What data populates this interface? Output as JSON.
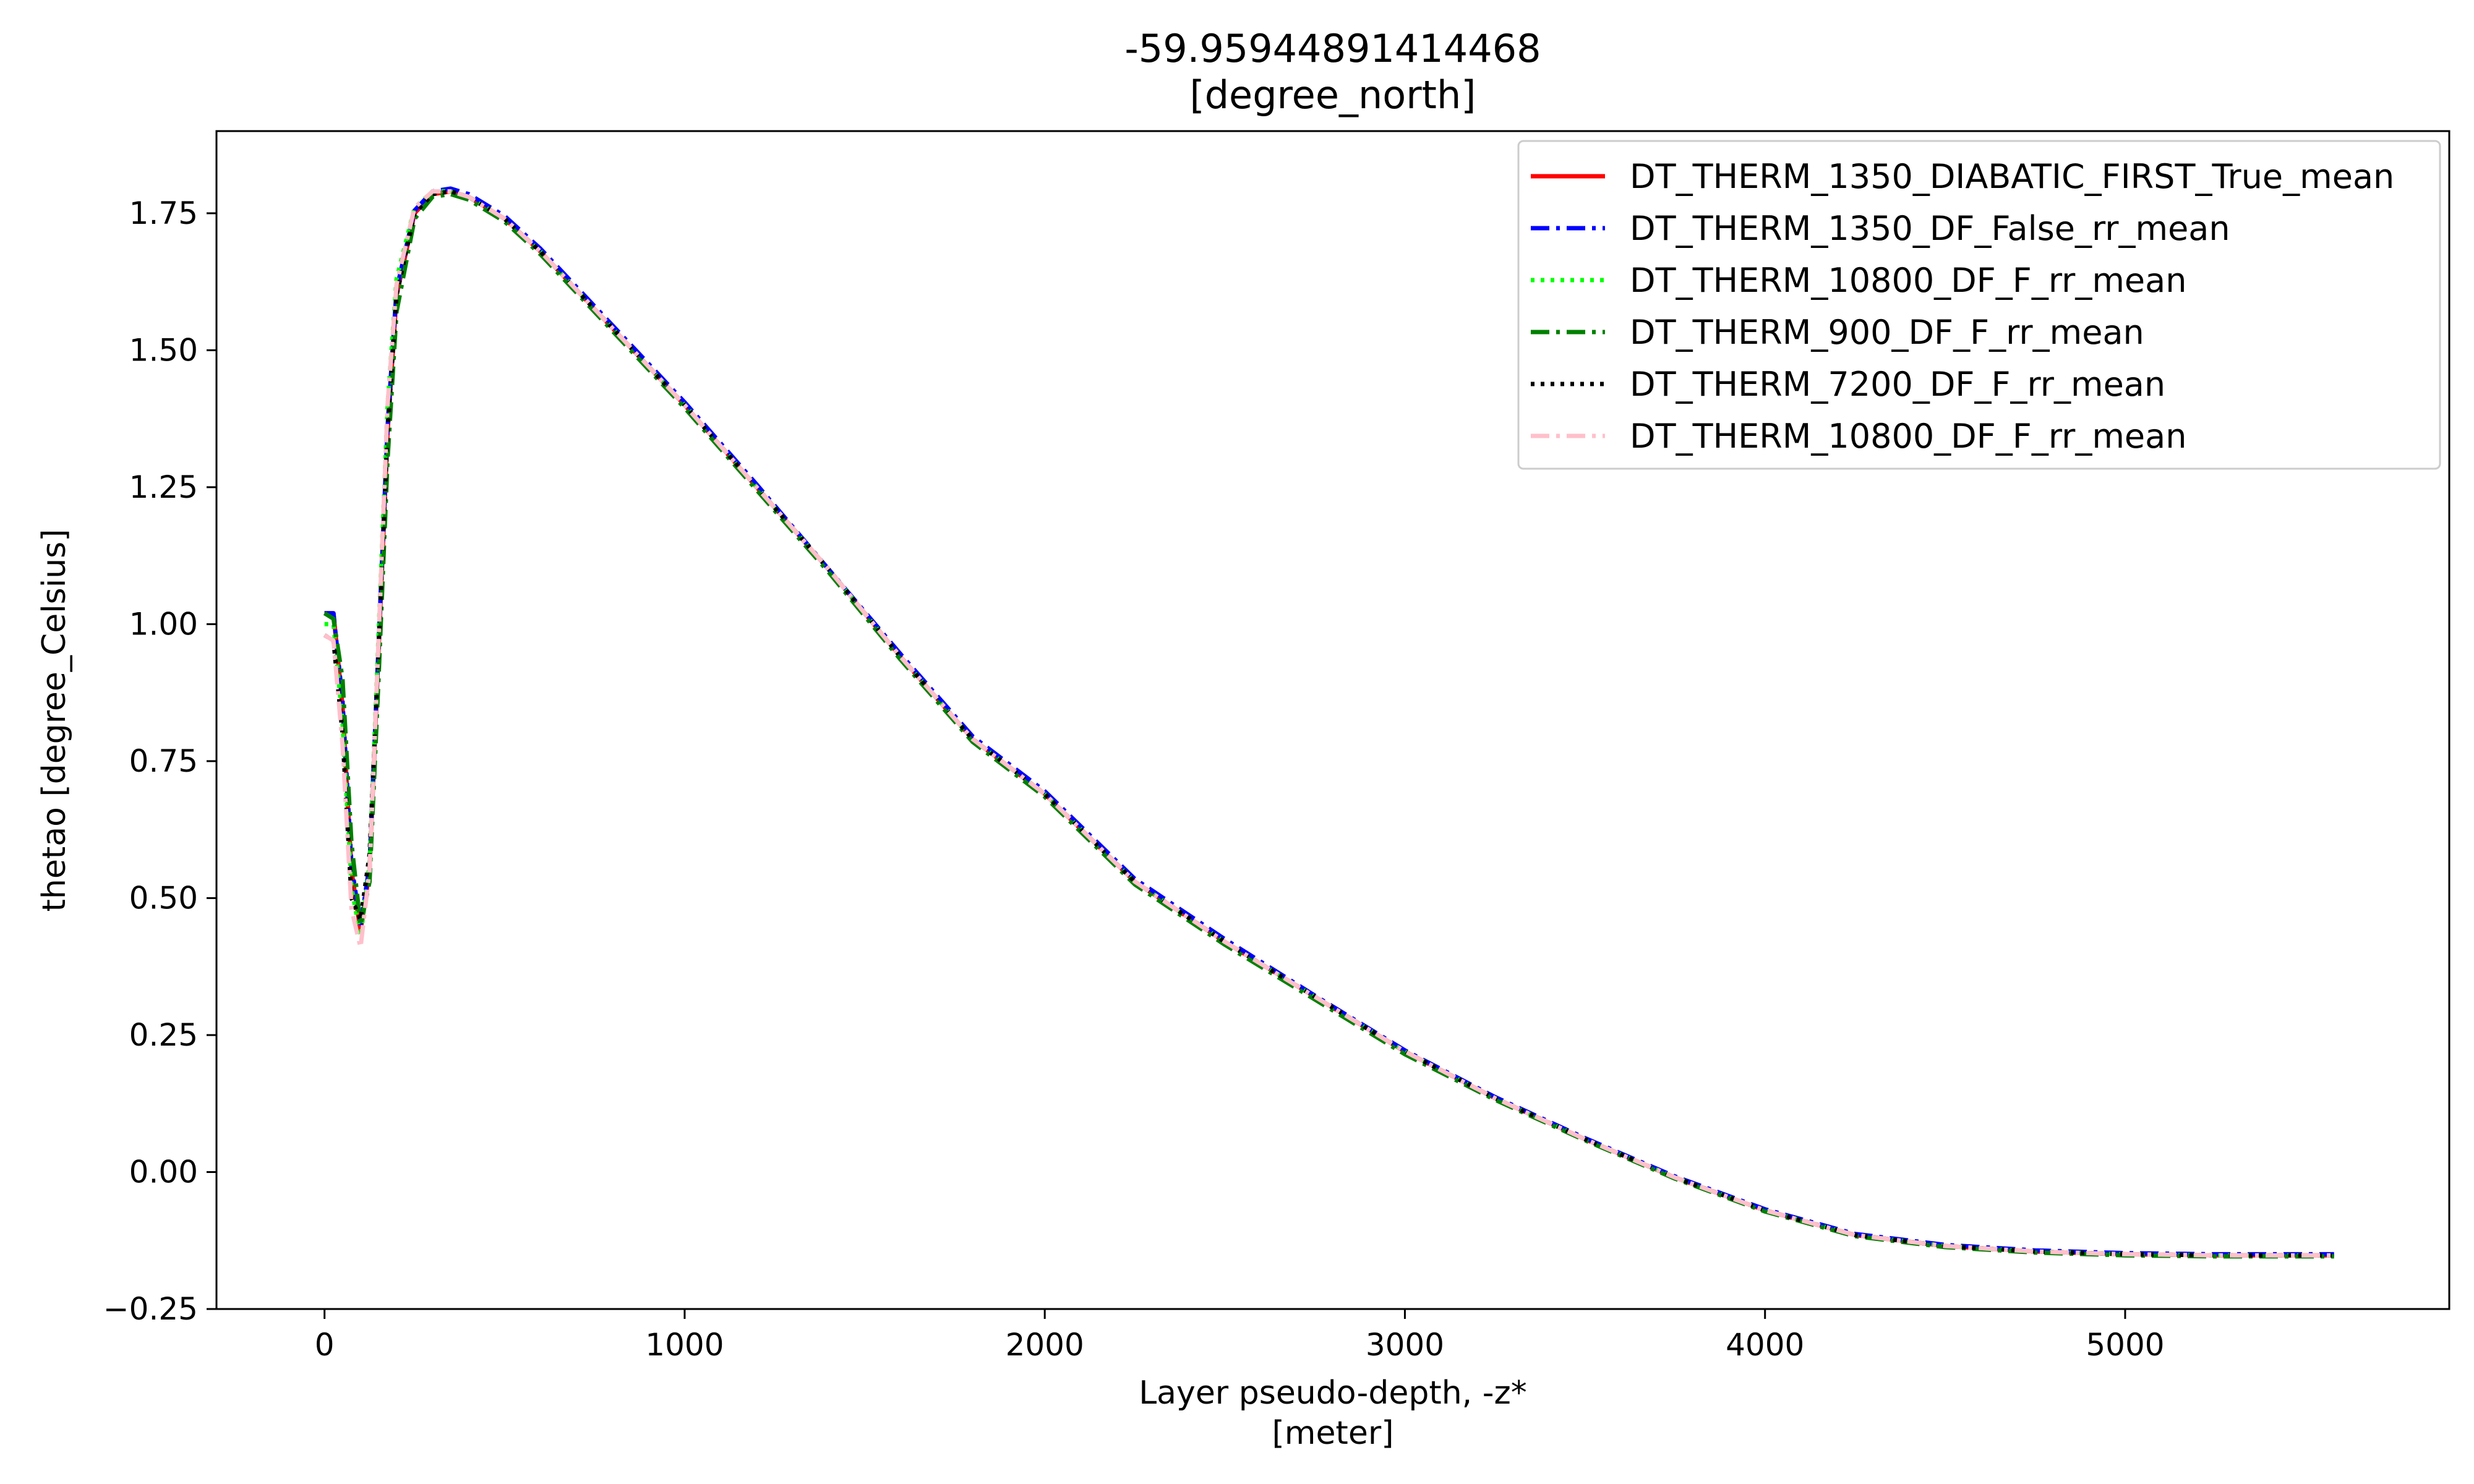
{
  "chart_data": {
    "type": "line",
    "title": "-59.95944891414468",
    "subtitle": "[degree_north]",
    "xlabel": "Layer pseudo-depth, -z*",
    "xlabel_units": "[meter]",
    "ylabel": "thetao [degree_Celsius]",
    "xlim": [
      -300,
      5900
    ],
    "ylim": [
      -0.25,
      1.9
    ],
    "xticks": [
      0,
      1000,
      2000,
      3000,
      4000,
      5000
    ],
    "xtick_labels": [
      "0",
      "1000",
      "2000",
      "3000",
      "4000",
      "5000"
    ],
    "yticks": [
      -0.25,
      0.0,
      0.25,
      0.5,
      0.75,
      1.0,
      1.25,
      1.5,
      1.75
    ],
    "ytick_labels": [
      "−0.25",
      "0.00",
      "0.25",
      "0.50",
      "0.75",
      "1.00",
      "1.25",
      "1.50",
      "1.75"
    ],
    "grid": false,
    "legend_position": "top-right",
    "x": [
      0,
      25,
      50,
      75,
      100,
      125,
      150,
      175,
      200,
      250,
      300,
      350,
      400,
      500,
      600,
      700,
      800,
      1000,
      1200,
      1400,
      1600,
      1800,
      2000,
      2250,
      2500,
      2750,
      3000,
      3250,
      3500,
      3750,
      4000,
      4250,
      4500,
      4750,
      5000,
      5250,
      5580
    ],
    "series": [
      {
        "name": "DT_THERM_1350_DIABATIC_FIRST_True_mean",
        "color": "#ff0000",
        "dash": "solid",
        "values": [
          1.02,
          1.02,
          0.85,
          0.55,
          0.44,
          0.55,
          0.95,
          1.35,
          1.6,
          1.75,
          1.785,
          1.79,
          1.78,
          1.74,
          1.68,
          1.61,
          1.54,
          1.4,
          1.25,
          1.1,
          0.94,
          0.79,
          0.69,
          0.53,
          0.42,
          0.32,
          0.22,
          0.135,
          0.06,
          -0.01,
          -0.07,
          -0.115,
          -0.135,
          -0.145,
          -0.15,
          -0.152,
          -0.152
        ]
      },
      {
        "name": "DT_THERM_1350_DF_False_rr_mean",
        "color": "#0000ff",
        "dash": "dashdot",
        "values": [
          1.02,
          1.02,
          0.86,
          0.56,
          0.45,
          0.56,
          0.96,
          1.36,
          1.61,
          1.755,
          1.79,
          1.795,
          1.785,
          1.745,
          1.685,
          1.615,
          1.545,
          1.405,
          1.255,
          1.1,
          0.945,
          0.795,
          0.695,
          0.535,
          0.425,
          0.322,
          0.222,
          0.137,
          0.062,
          -0.008,
          -0.068,
          -0.113,
          -0.133,
          -0.143,
          -0.148,
          -0.15,
          -0.15
        ]
      },
      {
        "name": "DT_THERM_10800_DF_F_rr_mean",
        "color": "#00ff00",
        "dash": "dotted",
        "values": [
          1.0,
          1.0,
          0.82,
          0.52,
          0.43,
          0.56,
          0.98,
          1.4,
          1.63,
          1.76,
          1.79,
          1.79,
          1.78,
          1.74,
          1.68,
          1.61,
          1.54,
          1.4,
          1.25,
          1.1,
          0.94,
          0.79,
          0.69,
          0.53,
          0.42,
          0.32,
          0.22,
          0.135,
          0.06,
          -0.01,
          -0.07,
          -0.115,
          -0.135,
          -0.145,
          -0.15,
          -0.152,
          -0.152
        ]
      },
      {
        "name": "DT_THERM_900_DF_F_rr_mean",
        "color": "#008000",
        "dash": "dashdot",
        "values": [
          1.02,
          1.01,
          0.9,
          0.6,
          0.45,
          0.53,
          0.9,
          1.3,
          1.57,
          1.74,
          1.78,
          1.785,
          1.775,
          1.735,
          1.675,
          1.605,
          1.535,
          1.395,
          1.245,
          1.095,
          0.935,
          0.785,
          0.685,
          0.525,
          0.415,
          0.315,
          0.215,
          0.132,
          0.058,
          -0.012,
          -0.072,
          -0.117,
          -0.137,
          -0.147,
          -0.152,
          -0.154,
          -0.154
        ]
      },
      {
        "name": "DT_THERM_7200_DF_F_rr_mean",
        "color": "#000000",
        "dash": "dotted",
        "values": [
          0.98,
          0.97,
          0.8,
          0.5,
          0.46,
          0.58,
          0.95,
          1.35,
          1.6,
          1.75,
          1.785,
          1.79,
          1.78,
          1.74,
          1.68,
          1.61,
          1.54,
          1.4,
          1.25,
          1.1,
          0.94,
          0.79,
          0.69,
          0.53,
          0.42,
          0.32,
          0.22,
          0.135,
          0.06,
          -0.01,
          -0.07,
          -0.115,
          -0.135,
          -0.145,
          -0.15,
          -0.152,
          -0.152
        ]
      },
      {
        "name": "DT_THERM_10800_DF_F_rr_mean",
        "color": "#ffc0cb",
        "dash": "dashdot",
        "values": [
          0.98,
          0.97,
          0.78,
          0.48,
          0.41,
          0.55,
          0.97,
          1.4,
          1.62,
          1.76,
          1.79,
          1.79,
          1.78,
          1.74,
          1.68,
          1.61,
          1.54,
          1.4,
          1.25,
          1.1,
          0.94,
          0.79,
          0.69,
          0.53,
          0.42,
          0.32,
          0.22,
          0.135,
          0.06,
          -0.01,
          -0.07,
          -0.115,
          -0.135,
          -0.145,
          -0.15,
          -0.152,
          -0.152
        ]
      }
    ]
  }
}
